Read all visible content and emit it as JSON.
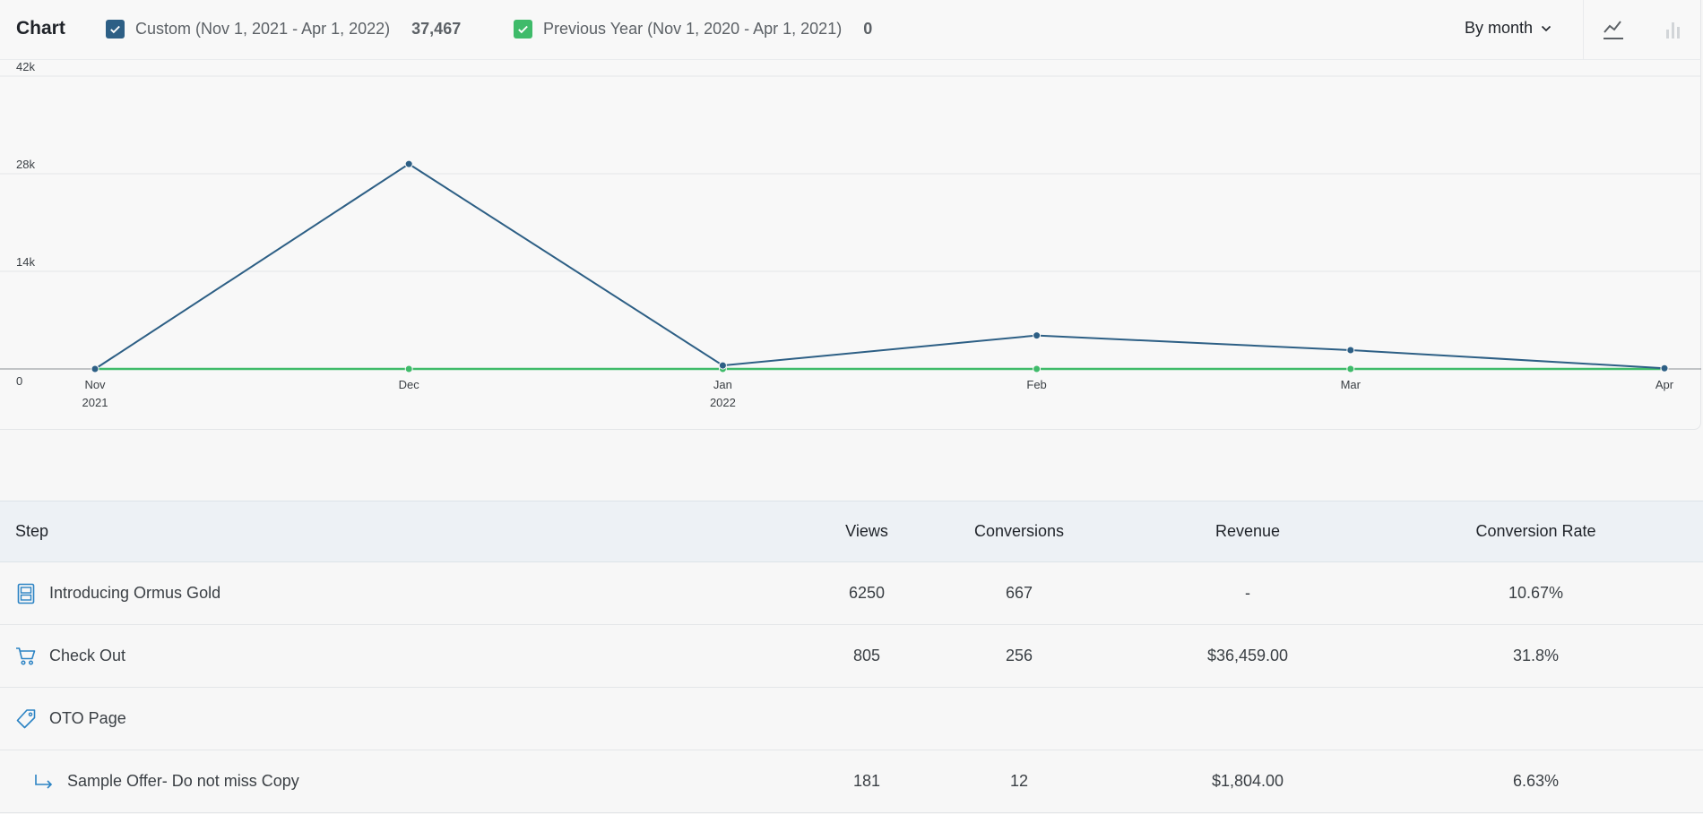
{
  "chart": {
    "title": "Chart",
    "legend": [
      {
        "label": "Custom (Nov 1, 2021 - Apr 1, 2022)",
        "total": "37,467",
        "color": "#2d5f85"
      },
      {
        "label": "Previous Year (Nov 1, 2020 - Apr 1, 2021)",
        "total": "0",
        "color": "#3fbb6a"
      }
    ],
    "group_by": "By month",
    "view_icons": [
      "line-chart-icon",
      "bar-chart-icon"
    ]
  },
  "chart_data": {
    "type": "line",
    "x": [
      "Nov 2021",
      "Dec",
      "Jan 2022",
      "Feb",
      "Mar",
      "Apr"
    ],
    "x_tick_labels": [
      "Nov",
      "Dec",
      "Jan",
      "Feb",
      "Mar",
      "Apr"
    ],
    "x_tick_sublabels": [
      "2021",
      "",
      "2022",
      "",
      "",
      ""
    ],
    "y_tick_labels": [
      "0",
      "14k",
      "28k",
      "42k"
    ],
    "ylim": [
      0,
      42000
    ],
    "grid": true,
    "legend_position": "top-left",
    "series": [
      {
        "name": "Custom (Nov 1, 2021 - Apr 1, 2022)",
        "color": "#2d5f85",
        "values": [
          0,
          29400,
          500,
          4800,
          2700,
          100
        ]
      },
      {
        "name": "Previous Year (Nov 1, 2020 - Apr 1, 2021)",
        "color": "#3fbb6a",
        "values": [
          0,
          0,
          0,
          0,
          0,
          0
        ]
      }
    ]
  },
  "table": {
    "headers": {
      "step": "Step",
      "views": "Views",
      "conversions": "Conversions",
      "revenue": "Revenue",
      "rate": "Conversion Rate"
    },
    "rows": [
      {
        "icon": "page-icon",
        "step": "Introducing Ormus Gold",
        "views": "6250",
        "conversions": "667",
        "revenue": "-",
        "rate": "10.67%"
      },
      {
        "icon": "cart-icon",
        "step": "Check Out",
        "views": "805",
        "conversions": "256",
        "revenue": "$36,459.00",
        "rate": "31.8%"
      },
      {
        "icon": "tag-icon",
        "step": "OTO Page",
        "views": "",
        "conversions": "",
        "revenue": "",
        "rate": ""
      },
      {
        "icon": "sub-arrow-icon",
        "step": "Sample Offer- Do not miss Copy",
        "views": "181",
        "conversions": "12",
        "revenue": "$1,804.00",
        "rate": "6.63%"
      }
    ]
  }
}
